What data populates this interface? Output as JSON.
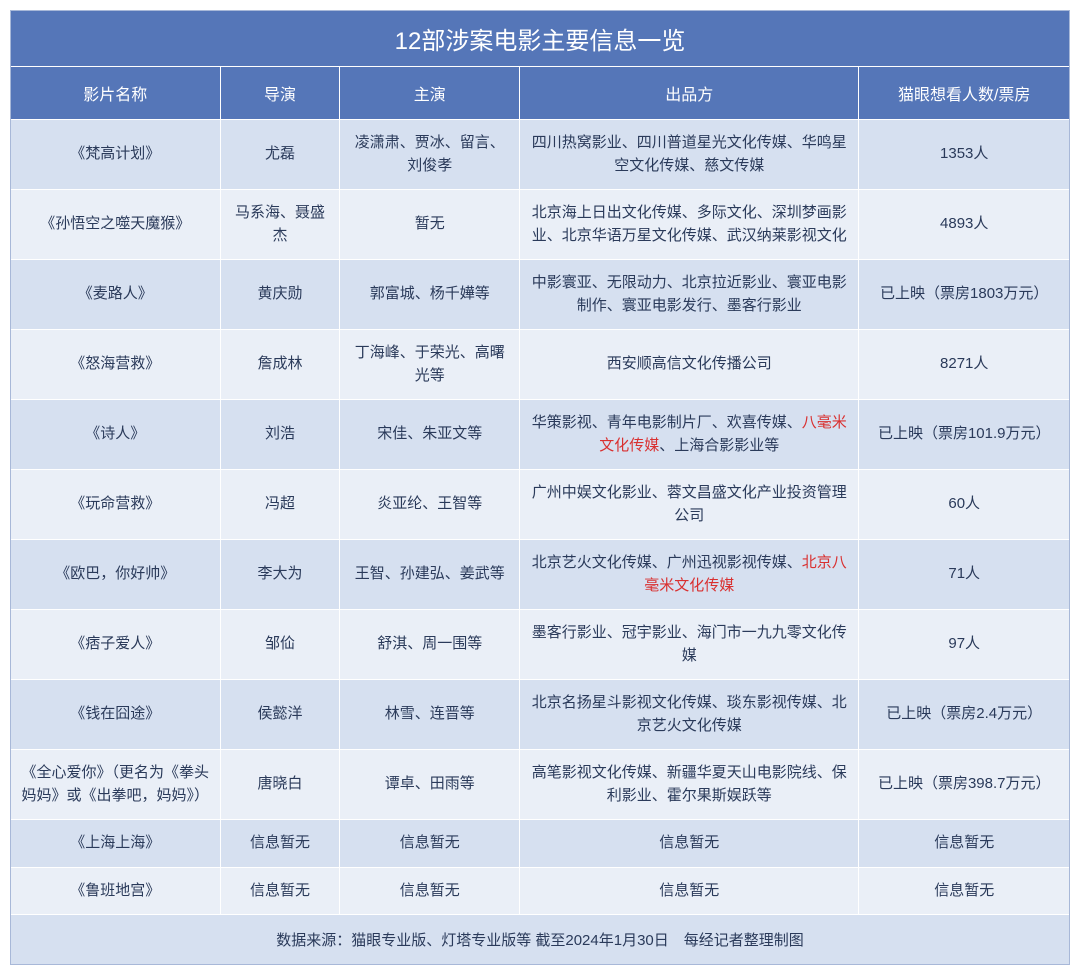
{
  "title": "12部涉案电影主要信息一览",
  "headers": {
    "name": "影片名称",
    "director": "导演",
    "cast": "主演",
    "producer": "出品方",
    "stats": "猫眼想看人数/票房"
  },
  "rows": [
    {
      "name": "《梵高计划》",
      "director": "尤磊",
      "cast": "凌潇肃、贾冰、留言、刘俊孝",
      "producer_parts": [
        {
          "text": "四川热窝影业、四川普道星光文化传媒、华鸣星空文化传媒、慈文传媒",
          "hl": false
        }
      ],
      "stats": "1353人"
    },
    {
      "name": "《孙悟空之噬天魔猴》",
      "director": "马系海、聂盛杰",
      "cast": "暂无",
      "producer_parts": [
        {
          "text": "北京海上日出文化传媒、多际文化、深圳梦画影业、北京华语万星文化传媒、武汉纳莱影视文化",
          "hl": false
        }
      ],
      "stats": "4893人"
    },
    {
      "name": "《麦路人》",
      "director": "黄庆勋",
      "cast": "郭富城、杨千嬅等",
      "producer_parts": [
        {
          "text": "中影寰亚、无限动力、北京拉近影业、寰亚电影制作、寰亚电影发行、墨客行影业",
          "hl": false
        }
      ],
      "stats": "已上映（票房1803万元）"
    },
    {
      "name": "《怒海营救》",
      "director": "詹成林",
      "cast": "丁海峰、于荣光、高曙光等",
      "producer_parts": [
        {
          "text": "西安顺高信文化传播公司",
          "hl": false
        }
      ],
      "stats": "8271人"
    },
    {
      "name": "《诗人》",
      "director": "刘浩",
      "cast": "宋佳、朱亚文等",
      "producer_parts": [
        {
          "text": "华策影视、青年电影制片厂、欢喜传媒、",
          "hl": false
        },
        {
          "text": "八毫米文化传媒",
          "hl": true
        },
        {
          "text": "、上海合影影业等",
          "hl": false
        }
      ],
      "stats": "已上映（票房101.9万元）"
    },
    {
      "name": "《玩命营救》",
      "director": "冯超",
      "cast": "炎亚纶、王智等",
      "producer_parts": [
        {
          "text": "广州中娱文化影业、蓉文昌盛文化产业投资管理公司",
          "hl": false
        }
      ],
      "stats": "60人"
    },
    {
      "name": "《欧巴，你好帅》",
      "director": "李大为",
      "cast": "王智、孙建弘、姜武等",
      "producer_parts": [
        {
          "text": "北京艺火文化传媒、广州迅视影视传媒、",
          "hl": false
        },
        {
          "text": "北京八毫米文化传媒",
          "hl": true
        }
      ],
      "stats": "71人"
    },
    {
      "name": "《痞子爱人》",
      "director": "邹佡",
      "cast": "舒淇、周一围等",
      "producer_parts": [
        {
          "text": "墨客行影业、冠宇影业、海门市一九九零文化传媒",
          "hl": false
        }
      ],
      "stats": "97人"
    },
    {
      "name": "《钱在囧途》",
      "director": "侯懿洋",
      "cast": "林雪、连晋等",
      "producer_parts": [
        {
          "text": "北京名扬星斗影视文化传媒、琰东影视传媒、北京艺火文化传媒",
          "hl": false
        }
      ],
      "stats": "已上映（票房2.4万元）"
    },
    {
      "name": "《全心爱你》（更名为《拳头妈妈》或《出拳吧，妈妈》）",
      "director": "唐晓白",
      "cast": "谭卓、田雨等",
      "producer_parts": [
        {
          "text": "高笔影视文化传媒、新疆华夏天山电影院线、保利影业、霍尔果斯娱跃等",
          "hl": false
        }
      ],
      "stats": "已上映（票房398.7万元）"
    },
    {
      "name": "《上海上海》",
      "director": "信息暂无",
      "cast": "信息暂无",
      "producer_parts": [
        {
          "text": "信息暂无",
          "hl": false
        }
      ],
      "stats": "信息暂无"
    },
    {
      "name": "《鲁班地宫》",
      "director": "信息暂无",
      "cast": "信息暂无",
      "producer_parts": [
        {
          "text": "信息暂无",
          "hl": false
        }
      ],
      "stats": "信息暂无"
    }
  ],
  "footer": "数据来源：猫眼专业版、灯塔专业版等 截至2024年1月30日　每经记者整理制图",
  "styling": {
    "title_bg": "#5576b8",
    "title_color": "#ffffff",
    "header_bg": "#5576b8",
    "header_color": "#ffffff",
    "odd_row_bg": "#d6e0f0",
    "even_row_bg": "#eaeff7",
    "text_color": "#2a3a5a",
    "highlight_color": "#d93030",
    "border_color": "#ffffff",
    "title_fontsize": 24,
    "header_fontsize": 16,
    "cell_fontsize": 15,
    "col_widths": {
      "name": 210,
      "director": 120,
      "cast": 180,
      "producer": 340,
      "stats": 210
    }
  }
}
